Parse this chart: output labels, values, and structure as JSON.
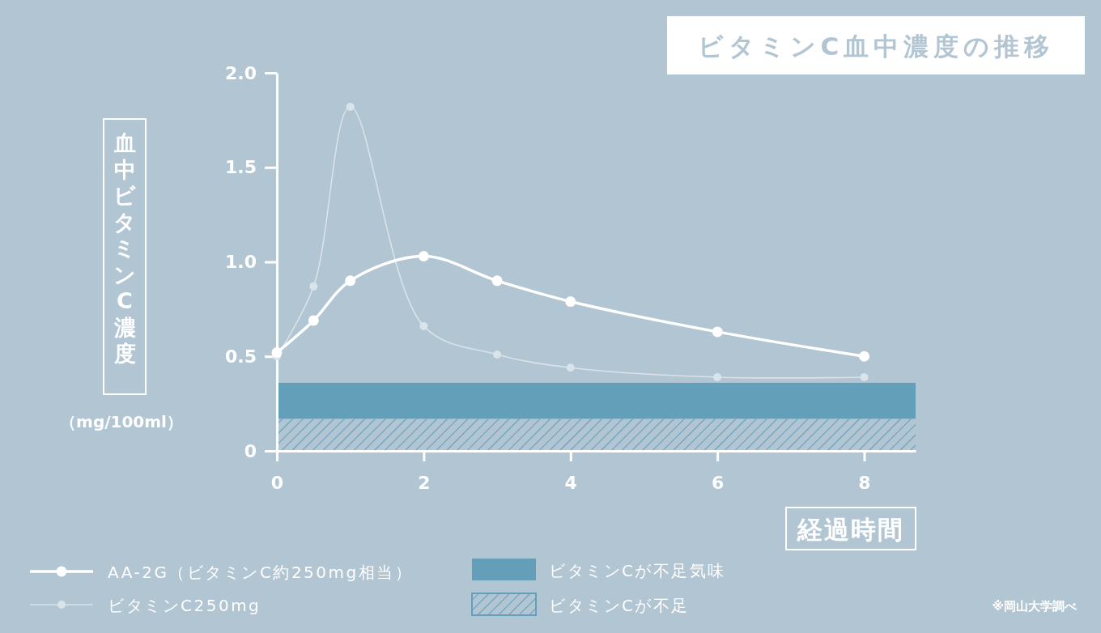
{
  "chart_data": {
    "type": "line",
    "title": "ビタミンC血中濃度の推移",
    "xlabel": "経過時間",
    "ylabel": "血中ビタミンC濃度（mg/100ml）",
    "x": [
      0,
      0.5,
      1,
      2,
      3,
      4,
      6,
      8
    ],
    "series": [
      {
        "name": "AA-2G（ビタミンC約250mg相当）",
        "color": "#ffffff",
        "values": [
          0.52,
          0.69,
          0.9,
          1.03,
          0.9,
          0.79,
          0.63,
          0.5
        ]
      },
      {
        "name": "ビタミンC250mg",
        "color": "#d9e3ea",
        "values": [
          0.5,
          0.87,
          1.82,
          0.66,
          0.51,
          0.44,
          0.39,
          0.39
        ]
      }
    ],
    "xlim": [
      0,
      8.7
    ],
    "ylim": [
      0,
      2
    ],
    "xticks": [
      0,
      2,
      4,
      6,
      8
    ],
    "yticks": [
      0,
      0.5,
      {
        "value": 1,
        "label": "1.0"
      },
      1.5,
      {
        "value": 2,
        "label": "2.0"
      }
    ],
    "bands": [
      {
        "axis": "y",
        "from": 0.17,
        "to": 0.36,
        "label": "ビタミンCが不足気味",
        "color": "#649fba"
      },
      {
        "axis": "y",
        "from": 0,
        "to": 0.17,
        "label": "ビタミンCが不足",
        "color": "#649fba"
      }
    ],
    "marker": "circle",
    "legend": "bottom",
    "annotations": [
      "※岡山大学調べ"
    ]
  }
}
